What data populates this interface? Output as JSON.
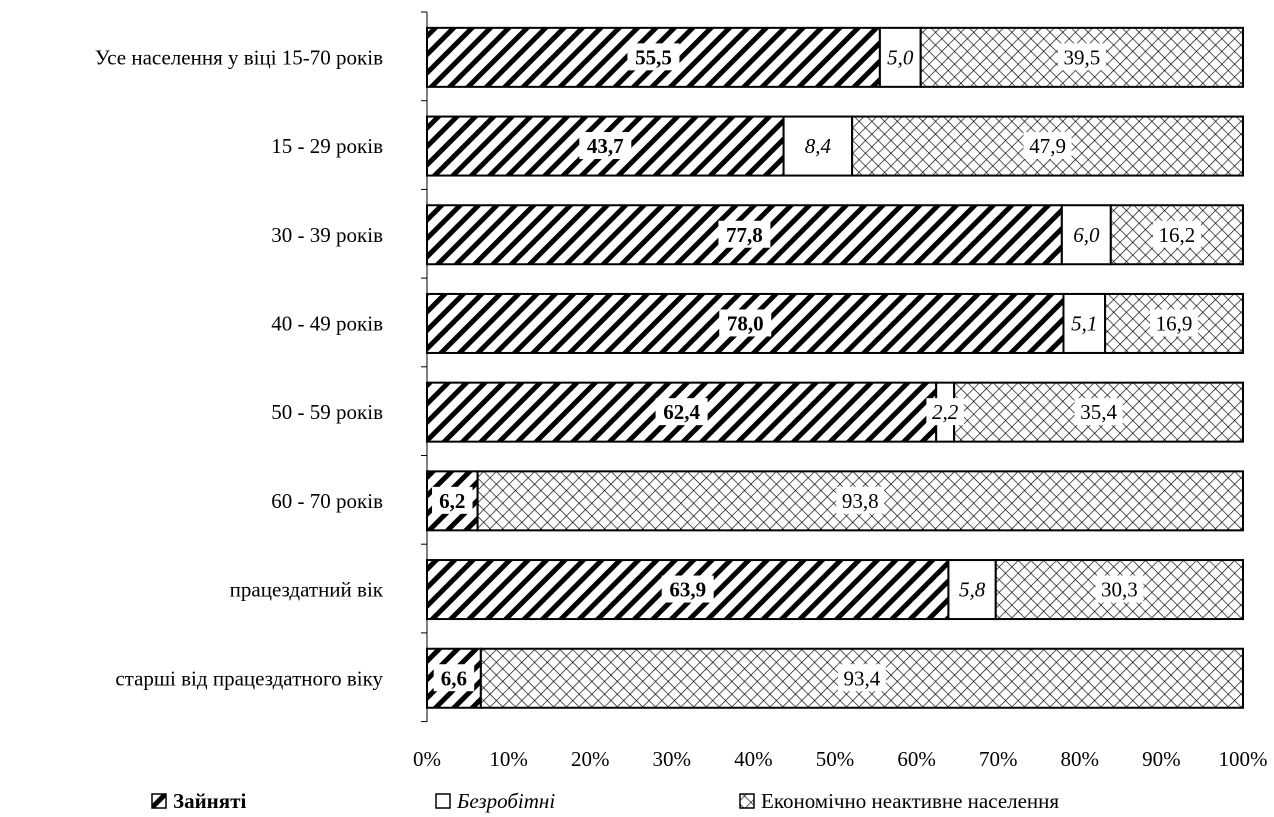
{
  "chart_data": {
    "type": "bar",
    "orientation": "horizontal",
    "stacked": true,
    "percent": true,
    "xlim": [
      0,
      100
    ],
    "x_ticks": [
      "0%",
      "10%",
      "20%",
      "30%",
      "40%",
      "50%",
      "60%",
      "70%",
      "80%",
      "90%",
      "100%"
    ],
    "categories": [
      "Усе населення у віці 15-70 років",
      "15 - 29 років",
      "30 - 39 років",
      "40 - 49 років",
      "50 - 59 років",
      "60 - 70 років",
      "працездатний вік",
      "старші від працездатного віку"
    ],
    "series": [
      {
        "name": "Зайняті",
        "values": [
          55.5,
          43.7,
          77.8,
          78.0,
          62.4,
          6.2,
          63.9,
          6.6
        ],
        "labels": [
          "55,5",
          "43,7",
          "77,8",
          "78,0",
          "62,4",
          "6,2",
          "63,9",
          "6,6"
        ],
        "pattern": "diagonal"
      },
      {
        "name": "Безробітні",
        "values": [
          5.0,
          8.4,
          6.0,
          5.1,
          2.2,
          0,
          5.8,
          0
        ],
        "labels": [
          "5,0",
          "8,4",
          "6,0",
          "5,1",
          "2,2",
          "",
          "5,8",
          ""
        ],
        "pattern": "blank"
      },
      {
        "name": "Економічно неактивне населення",
        "values": [
          39.5,
          47.9,
          16.2,
          16.9,
          35.4,
          93.8,
          30.3,
          93.4
        ],
        "labels": [
          "39,5",
          "47,9",
          "16,2",
          "16,9",
          "35,4",
          "93,8",
          "30,3",
          "93,4"
        ],
        "pattern": "crosshatch"
      }
    ],
    "legend": "bottom",
    "grid": false
  }
}
